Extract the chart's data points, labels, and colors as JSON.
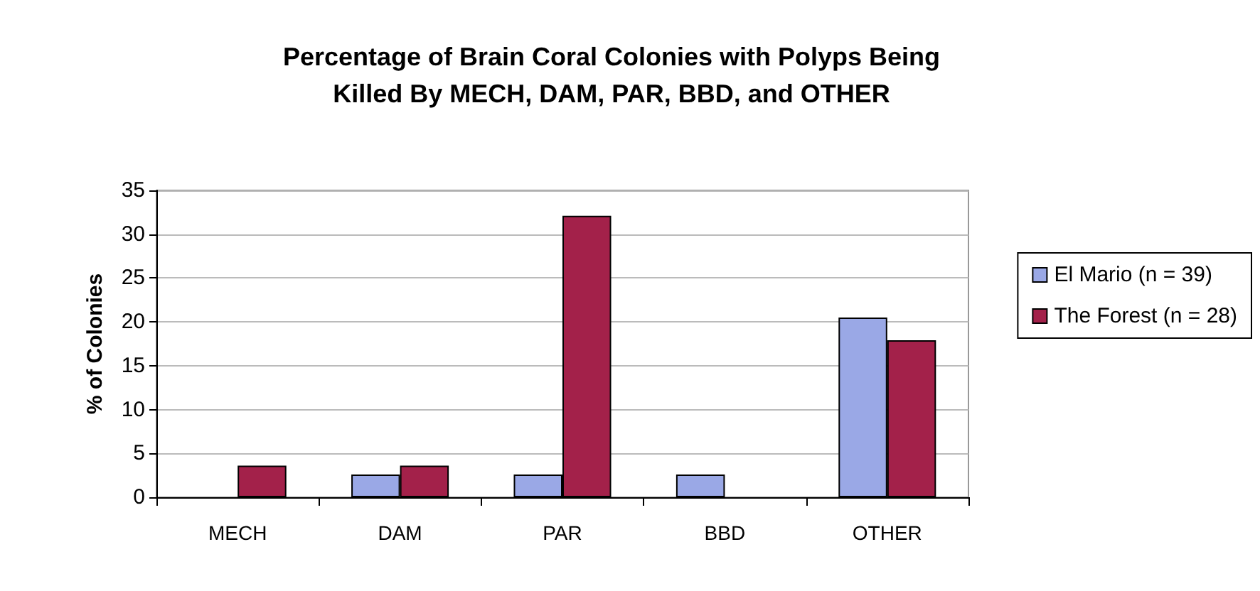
{
  "chart_data": {
    "type": "bar",
    "title": "Percentage of Brain Coral Colonies with Polyps Being\nKilled By MECH, DAM, PAR, BBD, and OTHER",
    "ylabel": "% of Colonies",
    "categories": [
      "MECH",
      "DAM",
      "PAR",
      "BBD",
      "OTHER"
    ],
    "series": [
      {
        "name": "El Mario (n = 39)",
        "color": "#9aa8e6",
        "values": [
          0,
          2.6,
          2.6,
          2.6,
          20.5
        ]
      },
      {
        "name": "The Forest (n = 28)",
        "color": "#a3214a",
        "values": [
          3.6,
          3.6,
          32.1,
          0,
          17.9
        ]
      }
    ],
    "ylim": [
      0,
      35
    ],
    "yticks": [
      0,
      5,
      10,
      15,
      20,
      25,
      30,
      35
    ],
    "grid": "y",
    "legend": "right"
  }
}
